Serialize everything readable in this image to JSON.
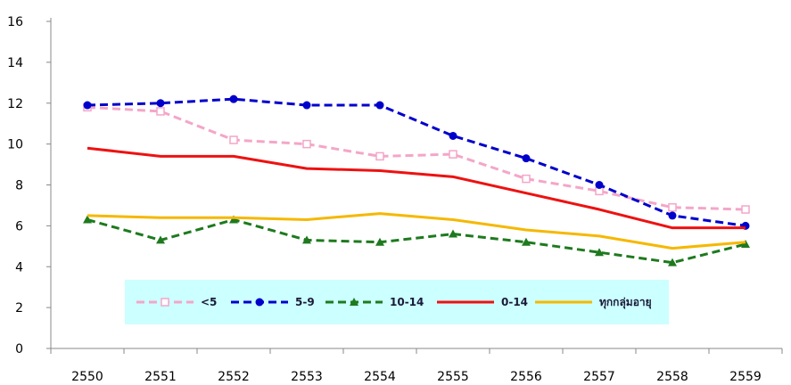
{
  "chart_data": {
    "type": "line",
    "title": "",
    "xlabel": "",
    "ylabel": "",
    "categories": [
      "2550",
      "2551",
      "2552",
      "2553",
      "2554",
      "2555",
      "2556",
      "2557",
      "2558",
      "2559"
    ],
    "ylim": [
      0,
      16
    ],
    "yticks": [
      0,
      2,
      4,
      6,
      8,
      10,
      12,
      14,
      16
    ],
    "grid": false,
    "legend_position": "bottom-center",
    "legend_background": "#ccffff",
    "series": [
      {
        "name": "<5",
        "color": "#f4a6c8",
        "dash": "dashed",
        "marker": "square",
        "values": [
          11.8,
          11.6,
          10.2,
          10.0,
          9.4,
          9.5,
          8.3,
          7.7,
          6.9,
          6.8
        ]
      },
      {
        "name": "5-9",
        "color": "#0000cc",
        "dash": "dashed",
        "marker": "circle",
        "values": [
          11.9,
          12.0,
          12.2,
          11.9,
          11.9,
          10.4,
          9.3,
          8.0,
          6.5,
          6.0
        ]
      },
      {
        "name": "10-14",
        "color": "#1e7a1e",
        "dash": "dashed",
        "marker": "triangle",
        "values": [
          6.3,
          5.3,
          6.3,
          5.3,
          5.2,
          5.6,
          5.2,
          4.7,
          4.2,
          5.1
        ]
      },
      {
        "name": "0-14",
        "color": "#ee1111",
        "dash": "solid",
        "marker": "none",
        "values": [
          9.8,
          9.4,
          9.4,
          8.8,
          8.7,
          8.4,
          7.6,
          6.8,
          5.9,
          5.9
        ]
      },
      {
        "name": "ทุกกลุ่มอายุ",
        "color": "#f5b800",
        "dash": "solid",
        "marker": "none",
        "values": [
          6.5,
          6.4,
          6.4,
          6.3,
          6.6,
          6.3,
          5.8,
          5.5,
          4.9,
          5.2
        ]
      }
    ]
  }
}
